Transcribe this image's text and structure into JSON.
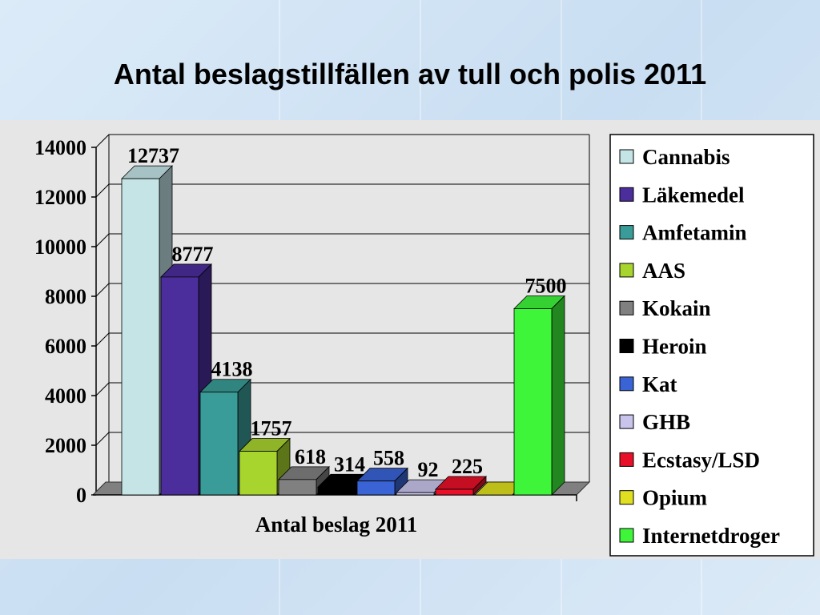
{
  "slide": {
    "title": "Antal beslagstillfällen av tull och polis 2011"
  },
  "colors": {
    "background": "#cfe2f4",
    "plot_panel": "#e6e6e6",
    "gridline": "#000000"
  },
  "chart_data": {
    "type": "bar",
    "title": "Antal beslagstillfällen av tull och polis 2011",
    "xlabel": "Antal beslag 2011",
    "ylabel": "",
    "ylim": [
      0,
      14000
    ],
    "yticks": [
      0,
      2000,
      4000,
      6000,
      8000,
      10000,
      12000,
      14000
    ],
    "yticks_labels": [
      "0",
      "2000",
      "4000",
      "6000",
      "8000",
      "10000",
      "12000",
      "14000"
    ],
    "grid": true,
    "legend_position": "right",
    "series": [
      {
        "name": "Cannabis",
        "value": 12737,
        "label": "12737",
        "color": "#c4e4e6"
      },
      {
        "name": "Läkemedel",
        "value": 8777,
        "label": "8777",
        "color": "#4b2e9c"
      },
      {
        "name": "Amfetamin",
        "value": 4138,
        "label": "4138",
        "color": "#3a9c98"
      },
      {
        "name": "AAS",
        "value": 1757,
        "label": "1757",
        "color": "#a8d42e"
      },
      {
        "name": "Kokain",
        "value": 618,
        "label": "618",
        "color": "#808080"
      },
      {
        "name": "Heroin",
        "value": 314,
        "label": "314",
        "color": "#000000"
      },
      {
        "name": "Kat",
        "value": 558,
        "label": "558",
        "color": "#3a64d6"
      },
      {
        "name": "GHB",
        "value": 92,
        "label": "92",
        "color": "#c8c4ec"
      },
      {
        "name": "Ecstasy/LSD",
        "value": 225,
        "label": "225",
        "color": "#e81028"
      },
      {
        "name": "Opium",
        "value": 0,
        "label": "",
        "color": "#e0e020"
      },
      {
        "name": "Internetdroger",
        "value": 7500,
        "label": "7500",
        "color": "#3ef53a"
      }
    ]
  }
}
